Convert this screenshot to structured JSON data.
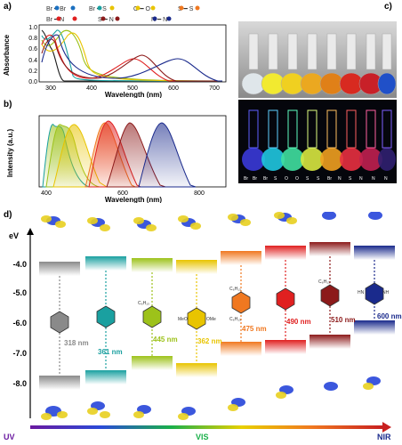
{
  "panels": {
    "a": "a)",
    "b": "b)",
    "c": "c)",
    "d": "d)"
  },
  "panel_a": {
    "legend": [
      "Br ━ Br",
      "Br ━ S",
      "O ━ O",
      "S ━ S",
      "Br ━ N",
      "S ━ N",
      "N ━ N"
    ],
    "ylabel": "Absorbance",
    "xlabel": "Wavelength (nm)",
    "yticks": [
      "0.0",
      "0.2",
      "0.4",
      "0.6",
      "0.8",
      "1.0"
    ],
    "xticks": [
      "300",
      "400",
      "500",
      "600",
      "700"
    ]
  },
  "panel_b": {
    "ylabel": "Intensity (a.u.)",
    "xlabel": "Wavelength (nm)",
    "xticks": [
      "400",
      "600",
      "800"
    ]
  },
  "panel_c": {
    "bottom_labels": [
      "Br",
      "Br",
      "Br",
      "S",
      "O",
      "O",
      "S",
      "S",
      "Br",
      "N",
      "S",
      "N",
      "N",
      "N"
    ]
  },
  "panel_d": {
    "axis_title": "eV",
    "yticks": [
      "-4.0",
      "-5.0",
      "-6.0",
      "-7.0",
      "-8.0"
    ],
    "gap_labels": [
      "318 nm",
      "361 nm",
      "445 nm",
      "362 nm",
      "475 nm",
      "490 nm",
      "510 nm",
      "600 nm"
    ],
    "spectrum_labels": {
      "uv": "UV",
      "vis": "VIS",
      "nir": "NIR"
    },
    "substituent_labels": {
      "c6h13_a": "C₆H₁₃",
      "c6h13_b": "C₆H₁₃",
      "c6h13_c": "C₆H₁₃",
      "c6h13_d": "C₆H₁₃",
      "meo": "MeO",
      "ome": "OMe",
      "hn_label": "HN",
      "nh_label": "NH"
    }
  },
  "colors": {
    "gray": "#8a8a8a",
    "teal": "#1aa0a0",
    "green": "#9dc21a",
    "yellow": "#e8c400",
    "orange": "#f07820",
    "red": "#e02020",
    "darkred": "#8c1a1a",
    "navy": "#1a2a8c"
  }
}
